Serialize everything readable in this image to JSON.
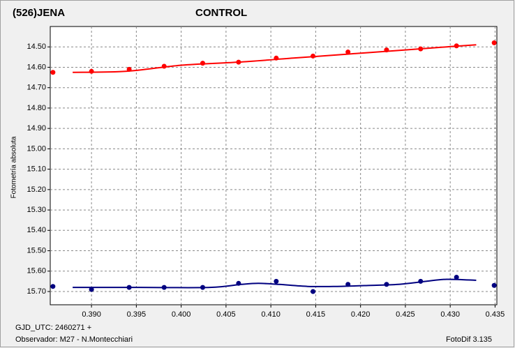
{
  "chart_data": {
    "type": "scatter",
    "y_label": "Fotometría absoluta",
    "footer": {
      "gjd": "GJD_UTC: 2460271 +",
      "observer": "Observador: M27 - N.Montecchiari",
      "software": "FotoDif 3.135"
    },
    "xlim": [
      0.3854,
      0.4352
    ],
    "ylim": [
      15.765,
      14.4
    ],
    "y_inverted": true,
    "grid": true,
    "xticks": [
      {
        "value": 0.39,
        "label": "0.390"
      },
      {
        "value": 0.395,
        "label": "0.395"
      },
      {
        "value": 0.4,
        "label": "0.400"
      },
      {
        "value": 0.405,
        "label": "0.405"
      },
      {
        "value": 0.41,
        "label": "0.410"
      },
      {
        "value": 0.415,
        "label": "0.415"
      },
      {
        "value": 0.42,
        "label": "0.420"
      },
      {
        "value": 0.425,
        "label": "0.425"
      },
      {
        "value": 0.43,
        "label": "0.430"
      },
      {
        "value": 0.435,
        "label": "0.435"
      }
    ],
    "yticks": [
      {
        "value": 14.5,
        "label": "14.50"
      },
      {
        "value": 14.6,
        "label": "14.60"
      },
      {
        "value": 14.7,
        "label": "14.70"
      },
      {
        "value": 14.8,
        "label": "14.80"
      },
      {
        "value": 14.9,
        "label": "14.90"
      },
      {
        "value": 15.0,
        "label": "15.00"
      },
      {
        "value": 15.1,
        "label": "15.10"
      },
      {
        "value": 15.2,
        "label": "15.20"
      },
      {
        "value": 15.3,
        "label": "15.30"
      },
      {
        "value": 15.4,
        "label": "15.40"
      },
      {
        "value": 15.5,
        "label": "15.50"
      },
      {
        "value": 15.6,
        "label": "15.60"
      },
      {
        "value": 15.7,
        "label": "15.70"
      }
    ],
    "series": [
      {
        "name": "(526)JENA",
        "color": "#ff0000",
        "x": [
          0.3857,
          0.39,
          0.3942,
          0.3981,
          0.4024,
          0.4064,
          0.4106,
          0.4147,
          0.4186,
          0.4229,
          0.4267,
          0.4307,
          0.4349
        ],
        "values": [
          14.625,
          14.62,
          14.61,
          14.595,
          14.58,
          14.575,
          14.555,
          14.545,
          14.525,
          14.515,
          14.51,
          14.495,
          14.48
        ],
        "fit": {
          "x": [
            0.3879,
            0.3938,
            0.4,
            0.4063,
            0.4125,
            0.4187,
            0.425,
            0.4296,
            0.4329
          ],
          "values": [
            14.625,
            14.62,
            14.59,
            14.575,
            14.555,
            14.535,
            14.515,
            14.5,
            14.49
          ]
        }
      },
      {
        "name": "CONTROL",
        "color": "#000080",
        "x": [
          0.3857,
          0.39,
          0.3942,
          0.3981,
          0.4024,
          0.4064,
          0.4106,
          0.4147,
          0.4186,
          0.4229,
          0.4267,
          0.4307,
          0.4349
        ],
        "values": [
          15.675,
          15.69,
          15.68,
          15.68,
          15.68,
          15.66,
          15.65,
          15.7,
          15.665,
          15.665,
          15.65,
          15.63,
          15.67
        ],
        "fit": {
          "x": [
            0.3879,
            0.3954,
            0.4032,
            0.4067,
            0.4086,
            0.4109,
            0.4141,
            0.4172,
            0.4211,
            0.4242,
            0.4273,
            0.4296,
            0.4329
          ],
          "values": [
            15.68,
            15.68,
            15.68,
            15.665,
            15.66,
            15.665,
            15.675,
            15.675,
            15.67,
            15.665,
            15.65,
            15.64,
            15.645
          ]
        }
      }
    ]
  }
}
